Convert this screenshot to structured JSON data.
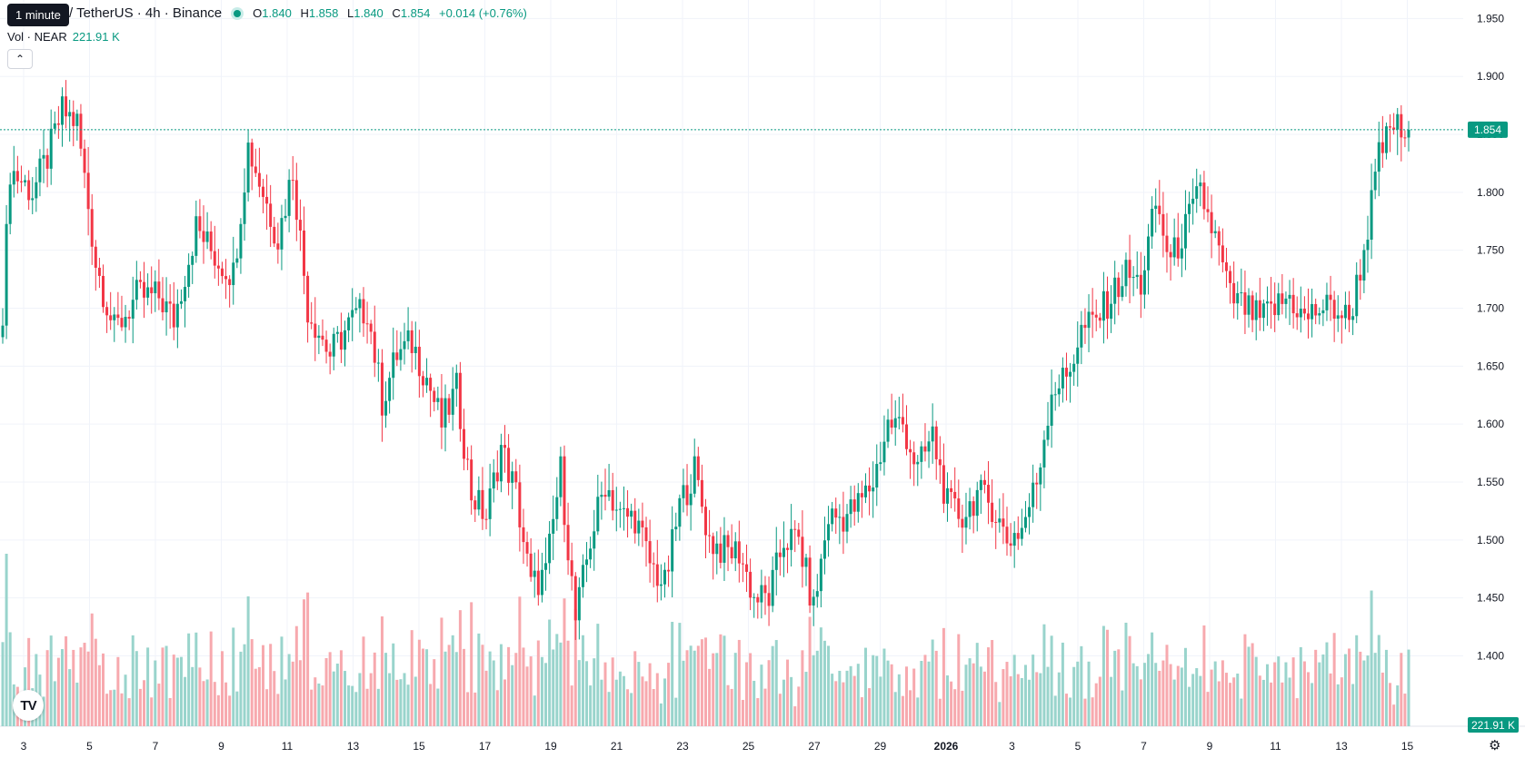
{
  "legend": {
    "symbol": "/ TetherUS · 4h · Binance",
    "open_label": "O",
    "open": "1.840",
    "high_label": "H",
    "high": "1.858",
    "low_label": "L",
    "low": "1.840",
    "close_label": "C",
    "close": "1.854",
    "change": "+0.014 (+0.76%)"
  },
  "tooltip": "1 minute",
  "volume_legend": {
    "label": "Vol · NEAR",
    "value": "221.91 K"
  },
  "price_badge": "1.854",
  "volume_badge": "221.91 K",
  "colors": {
    "up": "#089981",
    "down": "#f23645",
    "vol_up": "#99d4cc",
    "vol_down": "#f7a9ae",
    "grid": "#f0f3fa",
    "text": "#131722"
  },
  "icons": {
    "collapse": "chevron-up-icon",
    "logo": "tradingview-logo-icon",
    "settings": "gear-icon"
  },
  "chart_data": {
    "type": "candlestick",
    "title": "",
    "y_ticks": [
      "1.400",
      "1.450",
      "1.500",
      "1.550",
      "1.600",
      "1.650",
      "1.700",
      "1.750",
      "1.800",
      "1.850",
      "1.900",
      "1.950"
    ],
    "ylim": [
      1.38,
      1.955
    ],
    "x_ticks": [
      "3",
      "5",
      "7",
      "9",
      "11",
      "13",
      "15",
      "17",
      "19",
      "21",
      "23",
      "25",
      "27",
      "29",
      "2026",
      "3",
      "5",
      "7",
      "9",
      "11",
      "13",
      "15"
    ],
    "current_price": 1.854,
    "grid": true,
    "series": [
      {
        "name": "",
        "anchors": [
          [
            0,
            1.7
          ],
          [
            2,
            1.82
          ],
          [
            5,
            1.81
          ],
          [
            8,
            1.8
          ],
          [
            12,
            1.83
          ],
          [
            16,
            1.87
          ],
          [
            20,
            1.86
          ],
          [
            25,
            1.74
          ],
          [
            30,
            1.68
          ],
          [
            36,
            1.71
          ],
          [
            42,
            1.71
          ],
          [
            46,
            1.69
          ],
          [
            52,
            1.77
          ],
          [
            58,
            1.74
          ],
          [
            62,
            1.73
          ],
          [
            66,
            1.84
          ],
          [
            70,
            1.8
          ],
          [
            74,
            1.76
          ],
          [
            78,
            1.82
          ],
          [
            82,
            1.7
          ],
          [
            88,
            1.66
          ],
          [
            94,
            1.69
          ],
          [
            98,
            1.7
          ],
          [
            102,
            1.62
          ],
          [
            106,
            1.66
          ],
          [
            110,
            1.67
          ],
          [
            114,
            1.64
          ],
          [
            118,
            1.6
          ],
          [
            122,
            1.63
          ],
          [
            126,
            1.54
          ],
          [
            130,
            1.52
          ],
          [
            134,
            1.58
          ],
          [
            138,
            1.54
          ],
          [
            142,
            1.46
          ],
          [
            146,
            1.47
          ],
          [
            150,
            1.56
          ],
          [
            154,
            1.43
          ],
          [
            158,
            1.5
          ],
          [
            162,
            1.55
          ],
          [
            166,
            1.52
          ],
          [
            170,
            1.52
          ],
          [
            174,
            1.48
          ],
          [
            178,
            1.46
          ],
          [
            182,
            1.53
          ],
          [
            186,
            1.56
          ],
          [
            190,
            1.5
          ],
          [
            194,
            1.49
          ],
          [
            198,
            1.49
          ],
          [
            202,
            1.45
          ],
          [
            206,
            1.45
          ],
          [
            210,
            1.5
          ],
          [
            214,
            1.5
          ],
          [
            218,
            1.44
          ],
          [
            222,
            1.52
          ],
          [
            226,
            1.52
          ],
          [
            230,
            1.53
          ],
          [
            234,
            1.55
          ],
          [
            238,
            1.6
          ],
          [
            242,
            1.6
          ],
          [
            246,
            1.56
          ],
          [
            250,
            1.59
          ],
          [
            254,
            1.53
          ],
          [
            258,
            1.52
          ],
          [
            262,
            1.54
          ],
          [
            266,
            1.53
          ],
          [
            270,
            1.5
          ],
          [
            274,
            1.51
          ],
          [
            278,
            1.55
          ],
          [
            282,
            1.63
          ],
          [
            286,
            1.64
          ],
          [
            290,
            1.68
          ],
          [
            294,
            1.69
          ],
          [
            298,
            1.71
          ],
          [
            302,
            1.73
          ],
          [
            306,
            1.72
          ],
          [
            310,
            1.79
          ],
          [
            314,
            1.74
          ],
          [
            318,
            1.77
          ],
          [
            322,
            1.8
          ],
          [
            326,
            1.76
          ],
          [
            330,
            1.71
          ],
          [
            334,
            1.7
          ],
          [
            338,
            1.69
          ],
          [
            342,
            1.7
          ],
          [
            346,
            1.71
          ],
          [
            350,
            1.69
          ],
          [
            354,
            1.7
          ],
          [
            358,
            1.7
          ],
          [
            362,
            1.69
          ],
          [
            366,
            1.75
          ],
          [
            370,
            1.83
          ],
          [
            374,
            1.86
          ],
          [
            376,
            1.85
          ],
          [
            378,
            1.85
          ]
        ]
      }
    ]
  }
}
